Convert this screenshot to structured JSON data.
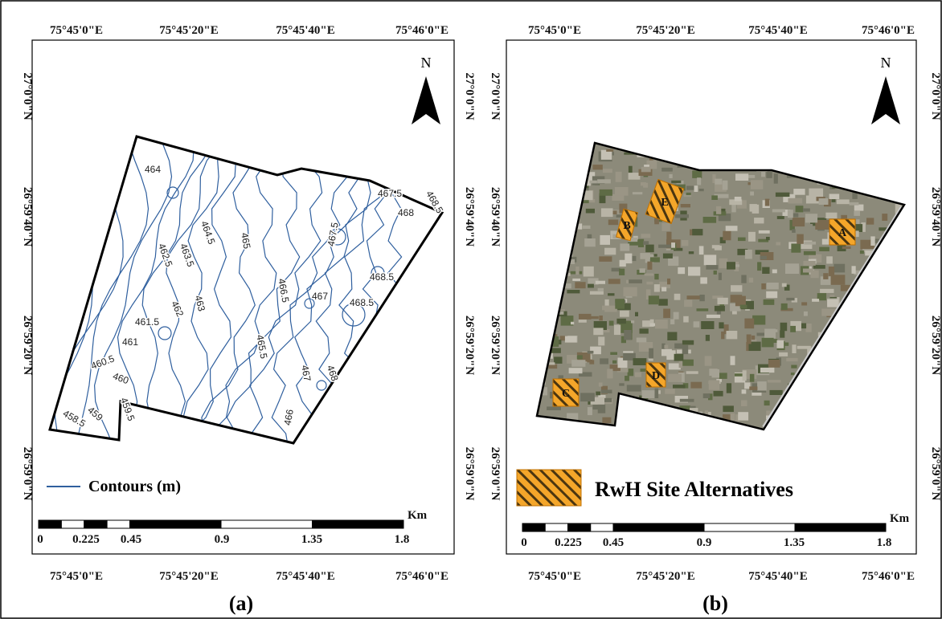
{
  "panels": [
    {
      "caption": "(a)",
      "top_ticks": [
        "75°45'0\"E",
        "75°45'20\"E",
        "75°45'40\"E",
        "75°46'0\"E"
      ],
      "bottom_ticks": [
        "75°45'0\"E",
        "75°45'20\"E",
        "75°45'40\"E",
        "75°46'0\"E"
      ],
      "left_ticks": [
        "27°0'0\"N",
        "26°59'40\"N",
        "26°59'20\"N",
        "26°59'0\"N"
      ],
      "right_ticks": [
        "27°0'0\"N",
        "26°59'40\"N",
        "26°59'20\"N",
        "26°59'0\"N"
      ],
      "north": "N",
      "contour_labels": [
        "464",
        "462.5",
        "463.5",
        "464.5",
        "465",
        "462",
        "463",
        "461.5",
        "461",
        "460.5",
        "460",
        "459.5",
        "459",
        "458.5",
        "465.5",
        "466",
        "466.5",
        "467",
        "467",
        "467.5",
        "467.5",
        "468",
        "468.5",
        "468.5",
        "468",
        "468.5"
      ],
      "legend": "Contours (m)",
      "scale": {
        "labels": [
          "0",
          "0.225",
          "0.45",
          "0.9",
          "1.35",
          "1.8"
        ],
        "unit": "Km"
      }
    },
    {
      "caption": "(b)",
      "top_ticks": [
        "75°45'0\"E",
        "75°45'20\"E",
        "75°45'40\"E",
        "75°46'0\"E"
      ],
      "bottom_ticks": [
        "75°45'0\"E",
        "75°45'20\"E",
        "75°45'40\"E",
        "75°46'0\"E"
      ],
      "left_ticks": [
        "27°0'0\"N",
        "26°59'40\"N",
        "26°59'20\"N",
        "26°59'0\"N"
      ],
      "right_ticks": [
        "27°0'0\"N",
        "26°59'40\"N",
        "26°59'20\"N",
        "26°59'0\"N"
      ],
      "north": "N",
      "site_labels": [
        "A",
        "B",
        "C",
        "D",
        "E"
      ],
      "legend": "RwH Site Alternatives",
      "scale": {
        "labels": [
          "0",
          "0.225",
          "0.45",
          "0.9",
          "1.35",
          "1.8"
        ],
        "unit": "Km"
      }
    }
  ]
}
